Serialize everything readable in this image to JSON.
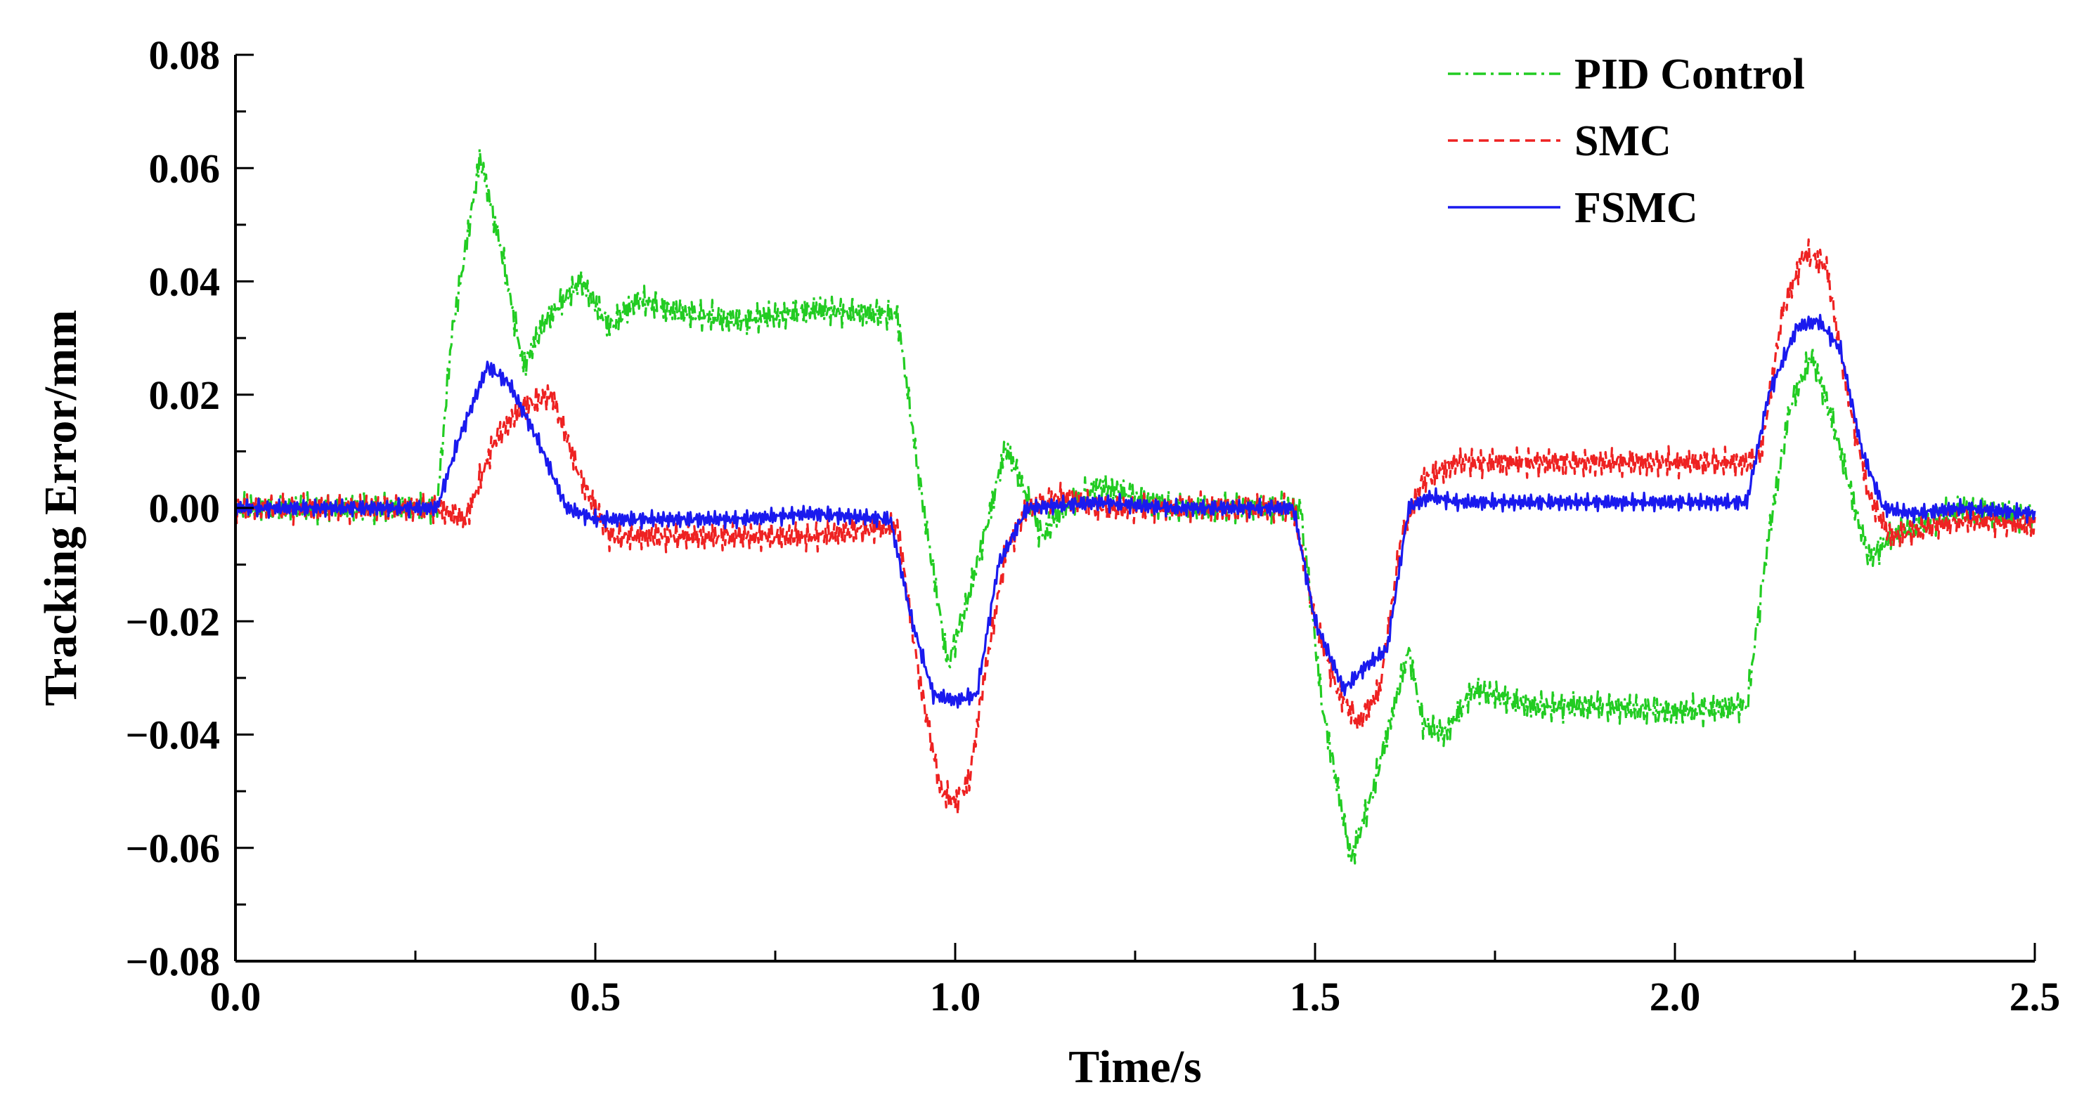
{
  "chart_data": {
    "type": "line",
    "title": "",
    "xlabel": "Time/s",
    "ylabel": "Tracking Error/mm",
    "xlim": [
      0.0,
      2.5
    ],
    "ylim": [
      -0.08,
      0.08
    ],
    "xticks": [
      "0.0",
      "0.5",
      "1.0",
      "1.5",
      "2.0",
      "2.5"
    ],
    "yticks": [
      "0.08",
      "0.06",
      "0.04",
      "0.02",
      "0.00",
      "−0.02",
      "−0.04",
      "−0.06",
      "−0.08"
    ],
    "grid": false,
    "legend_position": "top-right",
    "series": [
      {
        "name": "PID Control",
        "color": "#22cc22",
        "dash": "dashdot",
        "noise": 0.0032,
        "x": [
          0.0,
          0.28,
          0.3,
          0.34,
          0.37,
          0.4,
          0.43,
          0.48,
          0.52,
          0.56,
          0.6,
          0.7,
          0.8,
          0.92,
          0.95,
          0.99,
          1.02,
          1.05,
          1.07,
          1.09,
          1.12,
          1.15,
          1.2,
          1.3,
          1.4,
          1.48,
          1.51,
          1.55,
          1.58,
          1.61,
          1.63,
          1.65,
          1.68,
          1.72,
          1.8,
          1.9,
          2.0,
          2.1,
          2.13,
          2.16,
          2.19,
          2.22,
          2.25,
          2.27,
          2.3,
          2.4,
          2.5
        ],
        "y": [
          0.0,
          0.0,
          0.03,
          0.062,
          0.045,
          0.025,
          0.033,
          0.04,
          0.032,
          0.037,
          0.035,
          0.033,
          0.035,
          0.034,
          0.005,
          -0.028,
          -0.015,
          0.0,
          0.011,
          0.005,
          -0.005,
          0.0,
          0.004,
          0.0,
          0.0,
          0.0,
          -0.035,
          -0.062,
          -0.05,
          -0.035,
          -0.025,
          -0.038,
          -0.04,
          -0.032,
          -0.035,
          -0.035,
          -0.036,
          -0.035,
          -0.005,
          0.018,
          0.027,
          0.015,
          0.0,
          -0.009,
          -0.005,
          0.0,
          -0.002
        ]
      },
      {
        "name": "SMC",
        "color": "#ee2222",
        "dash": "dashed",
        "noise": 0.003,
        "x": [
          0.0,
          0.28,
          0.32,
          0.36,
          0.4,
          0.44,
          0.48,
          0.52,
          0.6,
          0.7,
          0.8,
          0.92,
          0.95,
          0.98,
          1.0,
          1.02,
          1.04,
          1.07,
          1.1,
          1.15,
          1.2,
          1.3,
          1.4,
          1.47,
          1.5,
          1.53,
          1.56,
          1.59,
          1.62,
          1.65,
          1.7,
          1.8,
          1.9,
          2.0,
          2.1,
          2.12,
          2.15,
          2.18,
          2.21,
          2.24,
          2.27,
          2.3,
          2.4,
          2.5
        ],
        "y": [
          0.0,
          0.0,
          -0.002,
          0.012,
          0.018,
          0.02,
          0.005,
          -0.005,
          -0.005,
          -0.005,
          -0.005,
          -0.003,
          -0.03,
          -0.05,
          -0.052,
          -0.048,
          -0.03,
          -0.008,
          0.0,
          0.002,
          0.0,
          0.0,
          0.0,
          0.0,
          -0.02,
          -0.032,
          -0.038,
          -0.032,
          -0.005,
          0.005,
          0.008,
          0.008,
          0.008,
          0.008,
          0.008,
          0.01,
          0.035,
          0.045,
          0.043,
          0.02,
          0.002,
          -0.005,
          -0.002,
          -0.003
        ]
      },
      {
        "name": "FSMC",
        "color": "#1a1aee",
        "dash": "solid",
        "noise": 0.0018,
        "x": [
          0.0,
          0.28,
          0.31,
          0.35,
          0.38,
          0.42,
          0.46,
          0.5,
          0.6,
          0.7,
          0.8,
          0.91,
          0.94,
          0.97,
          1.0,
          1.03,
          1.06,
          1.1,
          1.2,
          1.3,
          1.4,
          1.47,
          1.5,
          1.54,
          1.57,
          1.6,
          1.63,
          1.66,
          1.7,
          1.8,
          1.9,
          2.0,
          2.1,
          2.13,
          2.17,
          2.2,
          2.23,
          2.26,
          2.29,
          2.33,
          2.4,
          2.5
        ],
        "y": [
          0.0,
          0.0,
          0.012,
          0.025,
          0.022,
          0.012,
          0.0,
          -0.002,
          -0.002,
          -0.002,
          -0.001,
          -0.002,
          -0.02,
          -0.033,
          -0.034,
          -0.033,
          -0.01,
          0.0,
          0.001,
          0.0,
          0.0,
          0.0,
          -0.02,
          -0.032,
          -0.028,
          -0.025,
          0.0,
          0.002,
          0.001,
          0.001,
          0.001,
          0.001,
          0.001,
          0.02,
          0.032,
          0.033,
          0.028,
          0.01,
          0.0,
          -0.001,
          0.0,
          -0.001
        ]
      }
    ]
  }
}
